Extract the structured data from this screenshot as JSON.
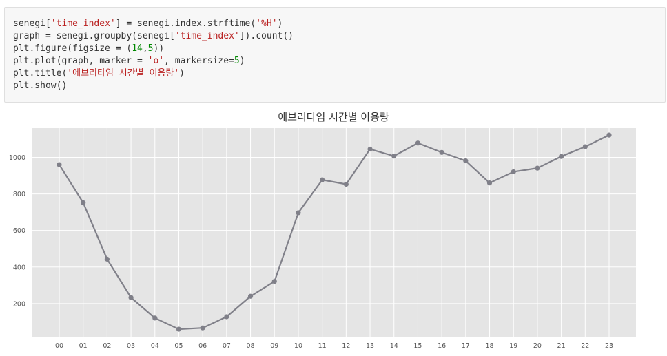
{
  "code_cell": {
    "lines": [
      [
        {
          "t": "senegi["
        },
        {
          "t": "'time_index'",
          "k": "str"
        },
        {
          "t": "] = senegi.index.strftime("
        },
        {
          "t": "'%H'",
          "k": "str"
        },
        {
          "t": ")"
        }
      ],
      [
        {
          "t": "graph = senegi.groupby(senegi["
        },
        {
          "t": "'time_index'",
          "k": "str"
        },
        {
          "t": "]).count()"
        }
      ],
      [
        {
          "t": "plt.figure(figsize = ("
        },
        {
          "t": "14",
          "k": "num"
        },
        {
          "t": ","
        },
        {
          "t": "5",
          "k": "num"
        },
        {
          "t": "))"
        }
      ],
      [
        {
          "t": "plt.plot(graph, marker = "
        },
        {
          "t": "'o'",
          "k": "str"
        },
        {
          "t": ", markersize="
        },
        {
          "t": "5",
          "k": "num"
        },
        {
          "t": ")"
        }
      ],
      [
        {
          "t": "plt.title("
        },
        {
          "t": "'에브리타임 시간별 이용량'",
          "k": "str"
        },
        {
          "t": ")"
        }
      ],
      [
        {
          "t": "plt.show()"
        }
      ]
    ]
  },
  "chart_data": {
    "type": "line",
    "title": "에브리타임 시간별 이용량",
    "categories": [
      "00",
      "01",
      "02",
      "03",
      "04",
      "05",
      "06",
      "07",
      "08",
      "09",
      "10",
      "11",
      "12",
      "13",
      "14",
      "15",
      "16",
      "17",
      "18",
      "19",
      "20",
      "21",
      "22",
      "23"
    ],
    "values": [
      960,
      752,
      443,
      233,
      121,
      60,
      67,
      128,
      240,
      321,
      697,
      877,
      853,
      1045,
      1007,
      1078,
      1027,
      981,
      860,
      921,
      941,
      1005,
      1058,
      1122
    ],
    "ylim": [
      15,
      1160
    ],
    "yticks": [
      200,
      400,
      600,
      800,
      1000
    ],
    "grid": true,
    "style": "ggplot",
    "line_color": "#808089",
    "background_color": "#e5e5e5",
    "grid_color": "#ffffff"
  }
}
